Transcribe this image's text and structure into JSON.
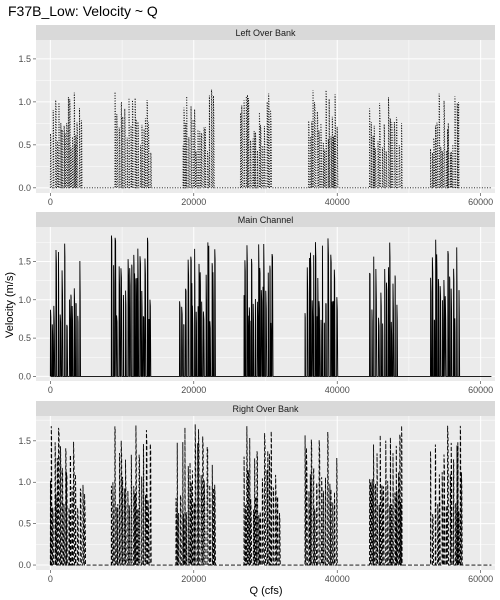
{
  "colors": {
    "panel_bg": "#ebebeb",
    "strip_bg": "#d9d9d9",
    "grid": "#ffffff",
    "line": "#000000"
  },
  "chart_data": {
    "type": "line",
    "title": "F37B_Low: Velocity ~ Q",
    "xlabel": "Q (cfs)",
    "ylabel": "Velocity (m/s)",
    "xlim": [
      -2000,
      62000
    ],
    "x_ticks": [
      0,
      20000,
      40000,
      60000
    ],
    "x_tick_labels": [
      "0",
      "20000",
      "40000",
      "60000"
    ],
    "grid": true,
    "legend": "none",
    "facets": [
      {
        "label": "Left Over Bank",
        "line_style": "dotted",
        "ylim": [
          -0.06,
          1.72
        ],
        "y_ticks": [
          0.0,
          0.5,
          1.0,
          1.5
        ],
        "y_tick_labels": [
          "0.0",
          "0.5",
          "1.0",
          "1.5"
        ],
        "peak_level": 1.15,
        "clusters": [
          [
            0,
            4500
          ],
          [
            9000,
            14000
          ],
          [
            18500,
            23000
          ],
          [
            26500,
            31000
          ],
          [
            36000,
            40000
          ],
          [
            44500,
            49000
          ],
          [
            53000,
            57000
          ]
        ]
      },
      {
        "label": "Main Channel",
        "line_style": "solid",
        "ylim": [
          -0.06,
          1.95
        ],
        "y_ticks": [
          0.0,
          0.5,
          1.0,
          1.5
        ],
        "y_tick_labels": [
          "0.0",
          "0.5",
          "1.0",
          "1.5"
        ],
        "peak_level": 1.85,
        "clusters": [
          [
            0,
            4200
          ],
          [
            8500,
            14000
          ],
          [
            18000,
            23000
          ],
          [
            27000,
            31000
          ],
          [
            35500,
            40000
          ],
          [
            44500,
            48500
          ],
          [
            53000,
            57000
          ]
        ]
      },
      {
        "label": "Right Over Bank",
        "line_style": "dashed",
        "ylim": [
          -0.06,
          1.8
        ],
        "y_ticks": [
          0.0,
          0.5,
          1.0,
          1.5
        ],
        "y_tick_labels": [
          "0.0",
          "0.5",
          "1.0",
          "1.5"
        ],
        "peak_level": 1.72,
        "clusters": [
          [
            0,
            5000
          ],
          [
            8500,
            14000
          ],
          [
            17500,
            23000
          ],
          [
            27000,
            32000
          ],
          [
            35500,
            40000
          ],
          [
            44500,
            49000
          ],
          [
            53000,
            57500
          ]
        ]
      }
    ]
  }
}
